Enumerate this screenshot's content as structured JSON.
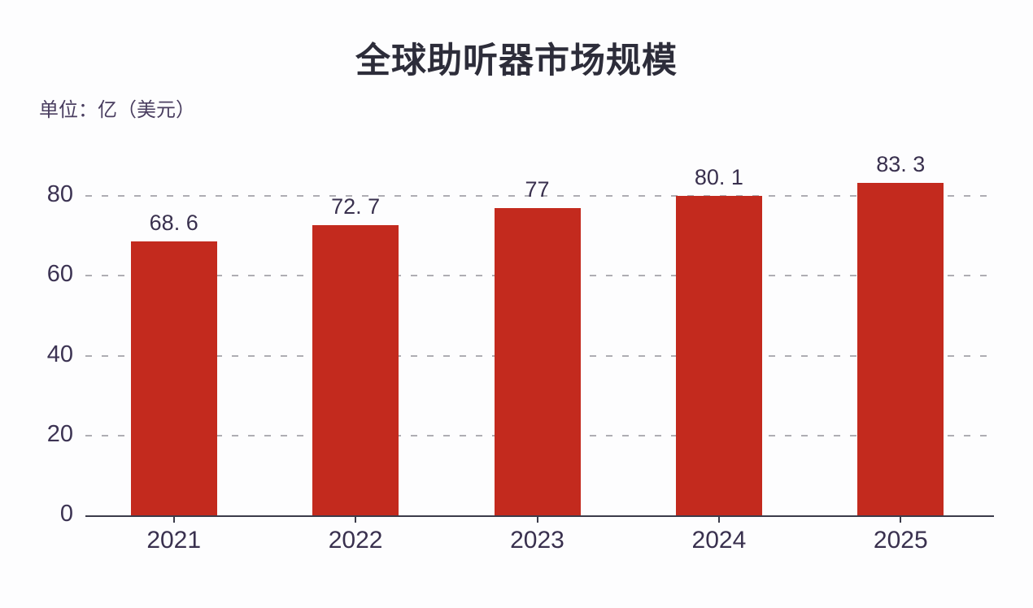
{
  "chart_data": {
    "type": "bar",
    "title": "全球助听器市场规模",
    "unit_label": "单位：亿（美元）",
    "categories": [
      "2021",
      "2022",
      "2023",
      "2024",
      "2025"
    ],
    "values": [
      68.6,
      72.7,
      77,
      80.1,
      83.3
    ],
    "value_labels": [
      "68. 6",
      "72. 7",
      "77",
      "80. 1",
      "83. 3"
    ],
    "y_ticks": [
      0,
      20,
      40,
      60,
      80
    ],
    "ylim": [
      0,
      90
    ],
    "grid": "horizontal-dashed",
    "legend_position": "none",
    "colors": {
      "bar": "#c32a1e",
      "title": "#2d2d3a",
      "unit_label": "#4a3e60",
      "tick_label": "#3c3353",
      "value_label": "#39304e",
      "axis": "#3b3b4a",
      "gridline": "#aeadb3",
      "background": "#fdfdfe"
    }
  }
}
